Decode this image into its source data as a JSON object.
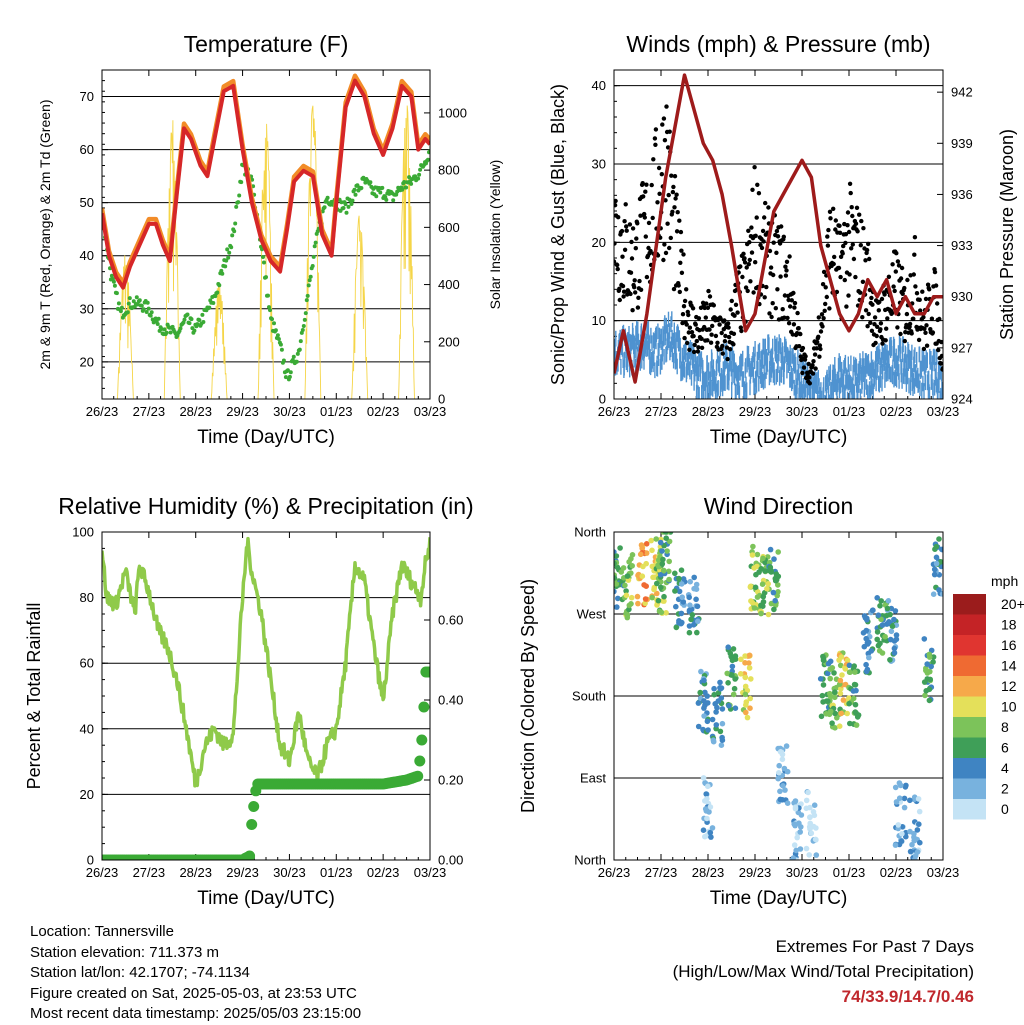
{
  "colors": {
    "temp_2m": "#d62728",
    "temp_9m": "#f28c28",
    "dewpoint": "#3aaa35",
    "solar": "#f5d547",
    "wind": "#4f93d0",
    "gust": "#000000",
    "pressure": "#9e1b1b",
    "rh": "#8fca4a",
    "precip": "#3aaa35",
    "extremes": "#c0282d"
  },
  "chart_data": [
    {
      "type": "line",
      "title": "Temperature (F)",
      "xlabel": "Time (Day/UTC)",
      "ylabel": "2m & 9m T (Red, Orange) & 2m Td (Green)",
      "y2label": "Solar Insolation (Yellow)",
      "x_ticks": [
        "26/23",
        "27/23",
        "28/23",
        "29/23",
        "30/23",
        "01/23",
        "02/23",
        "03/23"
      ],
      "xlim": [
        0,
        7
      ],
      "ylim": [
        13,
        75
      ],
      "y_ticks": [
        20,
        30,
        40,
        50,
        60,
        70
      ],
      "y2lim": [
        0,
        1150
      ],
      "y2_ticks": [
        0,
        200,
        400,
        600,
        800,
        1000
      ],
      "grid": true,
      "series": [
        {
          "key": "temp",
          "axis": "left",
          "x": [
            0,
            0.15,
            0.3,
            0.45,
            0.6,
            0.8,
            1.0,
            1.15,
            1.3,
            1.45,
            1.6,
            1.75,
            1.9,
            2.1,
            2.25,
            2.4,
            2.6,
            2.8,
            2.9,
            3.0,
            3.2,
            3.4,
            3.6,
            3.8,
            3.95,
            4.1,
            4.3,
            4.5,
            4.7,
            4.9,
            5.0,
            5.2,
            5.4,
            5.6,
            5.8,
            6.0,
            6.2,
            6.4,
            6.6,
            6.75,
            6.9,
            7.0
          ],
          "y": [
            48,
            40,
            36,
            34,
            38,
            42,
            46,
            46,
            42,
            39,
            52,
            64,
            62,
            57,
            55,
            62,
            71,
            72,
            66,
            60,
            50,
            43,
            39,
            37,
            45,
            54,
            56,
            55,
            44,
            40,
            50,
            68,
            73,
            70,
            63,
            59,
            64,
            72,
            70,
            60,
            62,
            61
          ]
        },
        {
          "key": "dewpoint",
          "axis": "left",
          "x": [
            0,
            0.2,
            0.4,
            0.6,
            0.8,
            1.0,
            1.2,
            1.4,
            1.6,
            1.8,
            2.0,
            2.2,
            2.4,
            2.6,
            2.8,
            3.0,
            3.2,
            3.4,
            3.6,
            3.8,
            3.95,
            4.2,
            4.4,
            4.6,
            4.8,
            5.0,
            5.2,
            5.4,
            5.6,
            5.8,
            6.0,
            6.2,
            6.4,
            6.6,
            6.8,
            7.0
          ],
          "y": [
            48,
            36,
            29,
            31,
            31,
            30,
            27,
            26,
            25,
            28,
            26,
            29,
            32,
            38,
            44,
            57,
            54,
            42,
            28,
            23,
            17,
            22,
            33,
            44,
            51,
            50,
            49,
            52,
            54,
            52,
            52,
            51,
            53,
            54,
            56,
            60
          ]
        },
        {
          "key": "solar",
          "axis": "right",
          "x": [
            0.33,
            0.5,
            0.67,
            1.33,
            1.5,
            1.67,
            2.33,
            2.5,
            2.67,
            3.33,
            3.5,
            3.67,
            4.33,
            4.5,
            4.67,
            5.33,
            5.5,
            5.67,
            6.33,
            6.5,
            6.67
          ],
          "y": [
            0,
            520,
            0,
            0,
            1000,
            0,
            0,
            420,
            0,
            0,
            980,
            0,
            0,
            1080,
            0,
            0,
            650,
            0,
            0,
            1070,
            0
          ]
        }
      ]
    },
    {
      "type": "scatter",
      "title": "Winds (mph) & Pressure (mb)",
      "xlabel": "Time (Day/UTC)",
      "ylabel": "Sonic/Prop Wind & Gust (Blue, Black)",
      "y2label": "Station Pressure (Maroon)",
      "x_ticks": [
        "26/23",
        "27/23",
        "28/23",
        "29/23",
        "30/23",
        "01/23",
        "02/23",
        "03/23"
      ],
      "xlim": [
        0,
        7
      ],
      "ylim": [
        0,
        42
      ],
      "y_ticks": [
        0,
        10,
        20,
        30,
        40
      ],
      "y2lim": [
        924,
        943.3
      ],
      "y2_ticks": [
        924,
        927,
        930,
        933,
        936,
        939,
        942
      ],
      "grid": true,
      "series": [
        {
          "key": "wind",
          "axis": "left",
          "x": [
            0,
            0.3,
            0.6,
            0.9,
            1.2,
            1.5,
            1.8,
            2.1,
            2.4,
            2.7,
            3.0,
            3.3,
            3.6,
            3.9,
            4.2,
            4.5,
            4.8,
            5.1,
            5.4,
            5.7,
            6.0,
            6.3,
            6.6,
            6.9,
            7.0
          ],
          "y": [
            7,
            7,
            8,
            7,
            9,
            6,
            4,
            4,
            5,
            4,
            5,
            6,
            6,
            4,
            2,
            1,
            4,
            3,
            4,
            5,
            6,
            5,
            4,
            4,
            2
          ]
        },
        {
          "key": "gust",
          "axis": "left",
          "x": [
            0,
            0.2,
            0.4,
            0.6,
            0.8,
            1.0,
            1.1,
            1.2,
            1.4,
            1.6,
            1.8,
            2.0,
            2.2,
            2.4,
            2.6,
            2.8,
            3.0,
            3.2,
            3.4,
            3.6,
            3.8,
            4.0,
            4.2,
            4.4,
            4.6,
            4.8,
            5.0,
            5.2,
            5.4,
            5.6,
            5.8,
            6.0,
            6.2,
            6.4,
            6.6,
            6.8,
            7.0
          ],
          "y": [
            22,
            19,
            17,
            20,
            23,
            27,
            31,
            25,
            16,
            10,
            8,
            10,
            9,
            7,
            12,
            14,
            22,
            18,
            17,
            16,
            12,
            5,
            3,
            10,
            19,
            16,
            20,
            18,
            15,
            9,
            12,
            14,
            11,
            15,
            9,
            13,
            5
          ]
        },
        {
          "key": "pressure",
          "axis": "right",
          "x": [
            0,
            0.2,
            0.45,
            0.7,
            0.9,
            1.1,
            1.3,
            1.5,
            1.7,
            1.9,
            2.1,
            2.3,
            2.5,
            2.8,
            3.0,
            3.2,
            3.4,
            3.6,
            3.8,
            4.0,
            4.2,
            4.4,
            4.6,
            4.8,
            5.0,
            5.2,
            5.4,
            5.6,
            5.8,
            6.0,
            6.2,
            6.4,
            6.6,
            6.8,
            7.0
          ],
          "y": [
            925.5,
            928,
            925,
            929,
            933,
            937,
            940,
            943,
            941,
            939,
            938,
            936,
            933,
            928,
            929,
            932,
            935,
            936,
            937,
            938,
            937,
            933,
            931,
            929,
            928,
            929,
            931,
            930,
            931,
            929,
            930,
            929,
            929,
            930,
            930
          ]
        }
      ]
    },
    {
      "type": "line",
      "title": "Relative Humidity (%) & Precipitation (in)",
      "xlabel": "Time (Day/UTC)",
      "ylabel": "Percent & Total Rainfall",
      "x_ticks": [
        "26/23",
        "27/23",
        "28/23",
        "29/23",
        "30/23",
        "01/23",
        "02/23",
        "03/23"
      ],
      "xlim": [
        0,
        7
      ],
      "ylim": [
        0,
        100
      ],
      "y_ticks": [
        0,
        20,
        40,
        60,
        80,
        100
      ],
      "y2lim": [
        0,
        0.82
      ],
      "y2_ticks": [
        "0.00",
        "0.20",
        "0.40",
        "0.60"
      ],
      "grid": true,
      "series": [
        {
          "key": "rh",
          "axis": "left",
          "x": [
            0,
            0.1,
            0.3,
            0.5,
            0.7,
            0.8,
            1.0,
            1.2,
            1.4,
            1.6,
            1.8,
            2.0,
            2.2,
            2.4,
            2.6,
            2.8,
            3.0,
            3.1,
            3.2,
            3.4,
            3.6,
            3.8,
            4.0,
            4.2,
            4.4,
            4.6,
            4.8,
            5.0,
            5.2,
            5.4,
            5.6,
            5.8,
            6.0,
            6.2,
            6.4,
            6.6,
            6.8,
            6.9,
            7.0
          ],
          "y": [
            95,
            80,
            78,
            88,
            75,
            90,
            82,
            70,
            65,
            55,
            40,
            23,
            35,
            40,
            35,
            38,
            80,
            97,
            88,
            75,
            55,
            35,
            30,
            45,
            30,
            25,
            35,
            40,
            60,
            90,
            85,
            65,
            48,
            75,
            90,
            85,
            80,
            90,
            97
          ]
        },
        {
          "key": "precip",
          "axis": "right",
          "x": [
            0,
            1.0,
            2.0,
            3.0,
            3.15,
            3.2,
            3.3,
            3.6,
            4.0,
            5.0,
            6.0,
            6.5,
            6.75,
            6.85,
            6.9,
            6.95,
            7.0
          ],
          "y": [
            0,
            0,
            0,
            0,
            0.01,
            0.1,
            0.19,
            0.19,
            0.19,
            0.19,
            0.19,
            0.2,
            0.21,
            0.33,
            0.47,
            0.47,
            0.47
          ]
        }
      ]
    },
    {
      "type": "scatter",
      "title": "Wind Direction",
      "xlabel": "Time (Day/UTC)",
      "ylabel": "Direction (Colored By Speed)",
      "x_ticks": [
        "26/23",
        "27/23",
        "28/23",
        "29/23",
        "30/23",
        "01/23",
        "02/23",
        "03/23"
      ],
      "xlim": [
        0,
        7
      ],
      "ylim": [
        0,
        360
      ],
      "y_ticks": [
        "North",
        "East",
        "South",
        "West",
        "North"
      ],
      "grid": true,
      "legend": {
        "title": "mph",
        "labels": [
          "20+",
          "18",
          "16",
          "14",
          "12",
          "10",
          "8",
          "6",
          "4",
          "2",
          "0"
        ],
        "colors": [
          "#9b1c1c",
          "#c42326",
          "#e03530",
          "#ef6a32",
          "#f6a94a",
          "#e4e05a",
          "#7cc35a",
          "#3f9f58",
          "#3f84c2",
          "#78b2de",
          "#c4e3f5"
        ]
      },
      "series": [
        {
          "key": "direction",
          "x": [
            0.1,
            0.3,
            0.6,
            0.9,
            1.0,
            1.1,
            1.4,
            1.7,
            1.9,
            2.0,
            2.2,
            2.5,
            2.8,
            3.0,
            3.2,
            3.4,
            3.6,
            3.9,
            4.2,
            4.5,
            4.7,
            4.9,
            5.1,
            5.4,
            5.7,
            5.9,
            6.1,
            6.4,
            6.7,
            6.9
          ],
          "y": [
            310,
            300,
            315,
            320,
            305,
            330,
            290,
            280,
            175,
            60,
            160,
            200,
            190,
            310,
            300,
            310,
            90,
            30,
            40,
            190,
            180,
            195,
            180,
            240,
            260,
            250,
            50,
            35,
            210,
            320
          ],
          "speed": [
            6,
            8,
            12,
            10,
            8,
            6,
            4,
            4,
            4,
            2,
            4,
            6,
            10,
            8,
            8,
            6,
            2,
            2,
            0,
            6,
            8,
            10,
            6,
            4,
            6,
            4,
            2,
            2,
            6,
            4
          ]
        }
      ]
    }
  ],
  "footer": {
    "location": "Location: Tannersville",
    "elevation": "Station elevation: 711.373 m",
    "latlon": "Station lat/lon: 42.1707; -74.1134",
    "created": "Figure created on Sat, 2025-05-03, at 23:53 UTC",
    "recent": "Most recent data timestamp: 2025/05/03 23:15:00",
    "extremes_title": "Extremes For Past 7 Days",
    "extremes_sub": "(High/Low/Max Wind/Total Precipitation)",
    "extremes_values": "74/33.9/14.7/0.46"
  }
}
